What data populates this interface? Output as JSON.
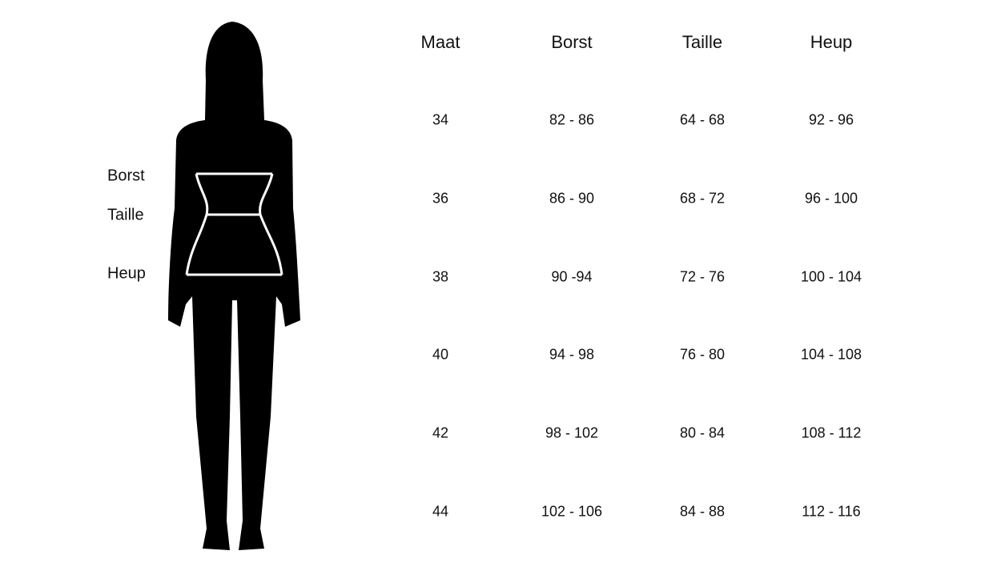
{
  "figure_labels": [
    "Borst",
    "Taille",
    "Heup"
  ],
  "table": {
    "headers": [
      "Maat",
      "Borst",
      "Taille",
      "Heup"
    ],
    "rows": [
      [
        "34",
        "82 - 86",
        "64 - 68",
        "92 - 96"
      ],
      [
        "36",
        "86 - 90",
        "68 - 72",
        "96 - 100"
      ],
      [
        "38",
        "90 -94",
        "72 - 76",
        "100 - 104"
      ],
      [
        "40",
        "94 - 98",
        "76 - 80",
        "104 - 108"
      ],
      [
        "42",
        "98 - 102",
        "80 - 84",
        "108 - 112"
      ],
      [
        "44",
        "102 - 106",
        "84 - 88",
        "112 - 116"
      ]
    ]
  }
}
